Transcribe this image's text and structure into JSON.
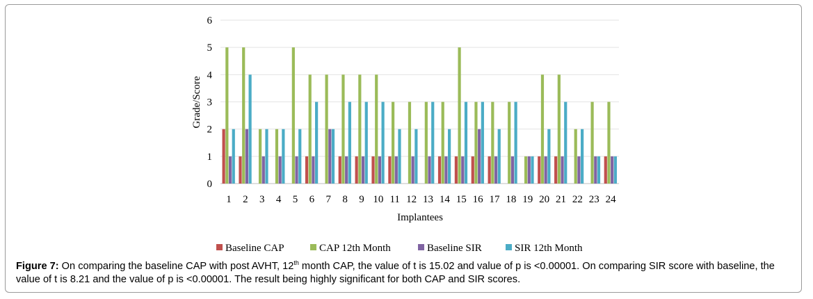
{
  "chart_data": {
    "type": "bar",
    "title": "",
    "xlabel": "Implantees",
    "ylabel": "Grade/Score",
    "ylim": [
      0,
      6
    ],
    "yticks": [
      "0",
      "1",
      "2",
      "3",
      "4",
      "5",
      "6"
    ],
    "grid": true,
    "legend_position": "bottom",
    "categories": [
      "1",
      "2",
      "3",
      "4",
      "5",
      "6",
      "7",
      "8",
      "9",
      "10",
      "11",
      "12",
      "13",
      "14",
      "15",
      "16",
      "17",
      "18",
      "19",
      "20",
      "21",
      "22",
      "23",
      "24"
    ],
    "series": [
      {
        "name": "Baseline CAP",
        "color": "#c0504d",
        "values": [
          2,
          1,
          0,
          0,
          0,
          1,
          0,
          1,
          1,
          1,
          1,
          0,
          0,
          1,
          1,
          1,
          1,
          0,
          0,
          1,
          1,
          0,
          0,
          1
        ]
      },
      {
        "name": "CAP 12th Month",
        "color": "#9bbb59",
        "values": [
          5,
          5,
          2,
          2,
          5,
          4,
          4,
          4,
          4,
          4,
          3,
          3,
          3,
          3,
          5,
          3,
          3,
          3,
          1,
          4,
          4,
          2,
          3,
          3
        ]
      },
      {
        "name": "Baseline SIR",
        "color": "#8064a2",
        "values": [
          1,
          2,
          1,
          1,
          1,
          1,
          2,
          1,
          1,
          1,
          1,
          1,
          1,
          1,
          1,
          2,
          1,
          1,
          1,
          1,
          1,
          1,
          1,
          1
        ]
      },
      {
        "name": "SIR 12th Month",
        "color": "#4bacc6",
        "values": [
          2,
          4,
          2,
          2,
          2,
          3,
          2,
          3,
          3,
          3,
          2,
          2,
          3,
          2,
          3,
          3,
          2,
          3,
          1,
          2,
          3,
          2,
          1,
          1
        ]
      }
    ]
  },
  "caption": {
    "label": "Figure 7:",
    "part1": " On comparing the baseline CAP with post AVHT, 12",
    "sup": "th",
    "part2": " month CAP, the value of t is 15.02 and value of p is <0.00001. On comparing SIR score with baseline, the value of t is 8.21 and the value of p is <0.00001. The result being highly significant for both CAP and SIR scores."
  }
}
